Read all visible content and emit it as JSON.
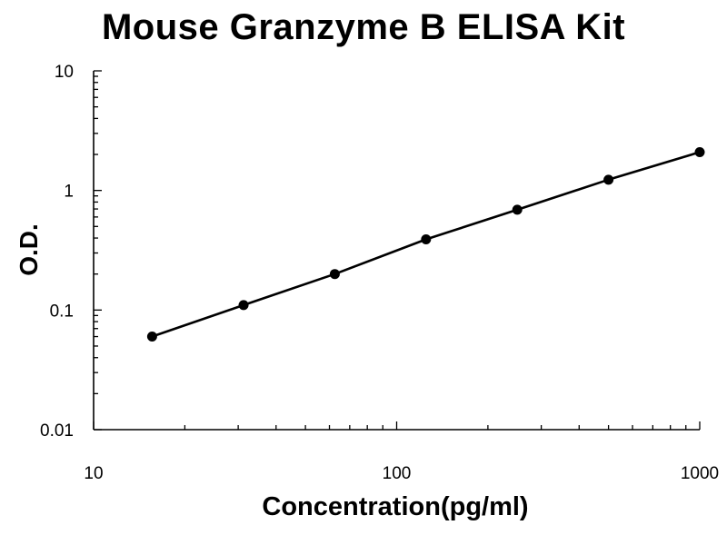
{
  "chart_data": {
    "type": "line",
    "title": "Mouse Granzyme B ELISA Kit",
    "xlabel": "Concentration(pg/ml)",
    "ylabel": "O.D.",
    "x_scale": "log",
    "y_scale": "log",
    "xlim": [
      10,
      1000
    ],
    "ylim": [
      0.01,
      10
    ],
    "x_ticks": [
      "10",
      "100",
      "1000"
    ],
    "y_ticks": [
      "10",
      "1",
      "0.1",
      "0.01"
    ],
    "grid": false,
    "legend": "none",
    "series": [
      {
        "x": [
          15.6,
          31.25,
          62.5,
          125,
          250,
          500,
          1000
        ],
        "y": [
          0.06,
          0.11,
          0.2,
          0.39,
          0.69,
          1.23,
          2.09
        ],
        "color": "#000000",
        "marker": "circle"
      }
    ]
  }
}
